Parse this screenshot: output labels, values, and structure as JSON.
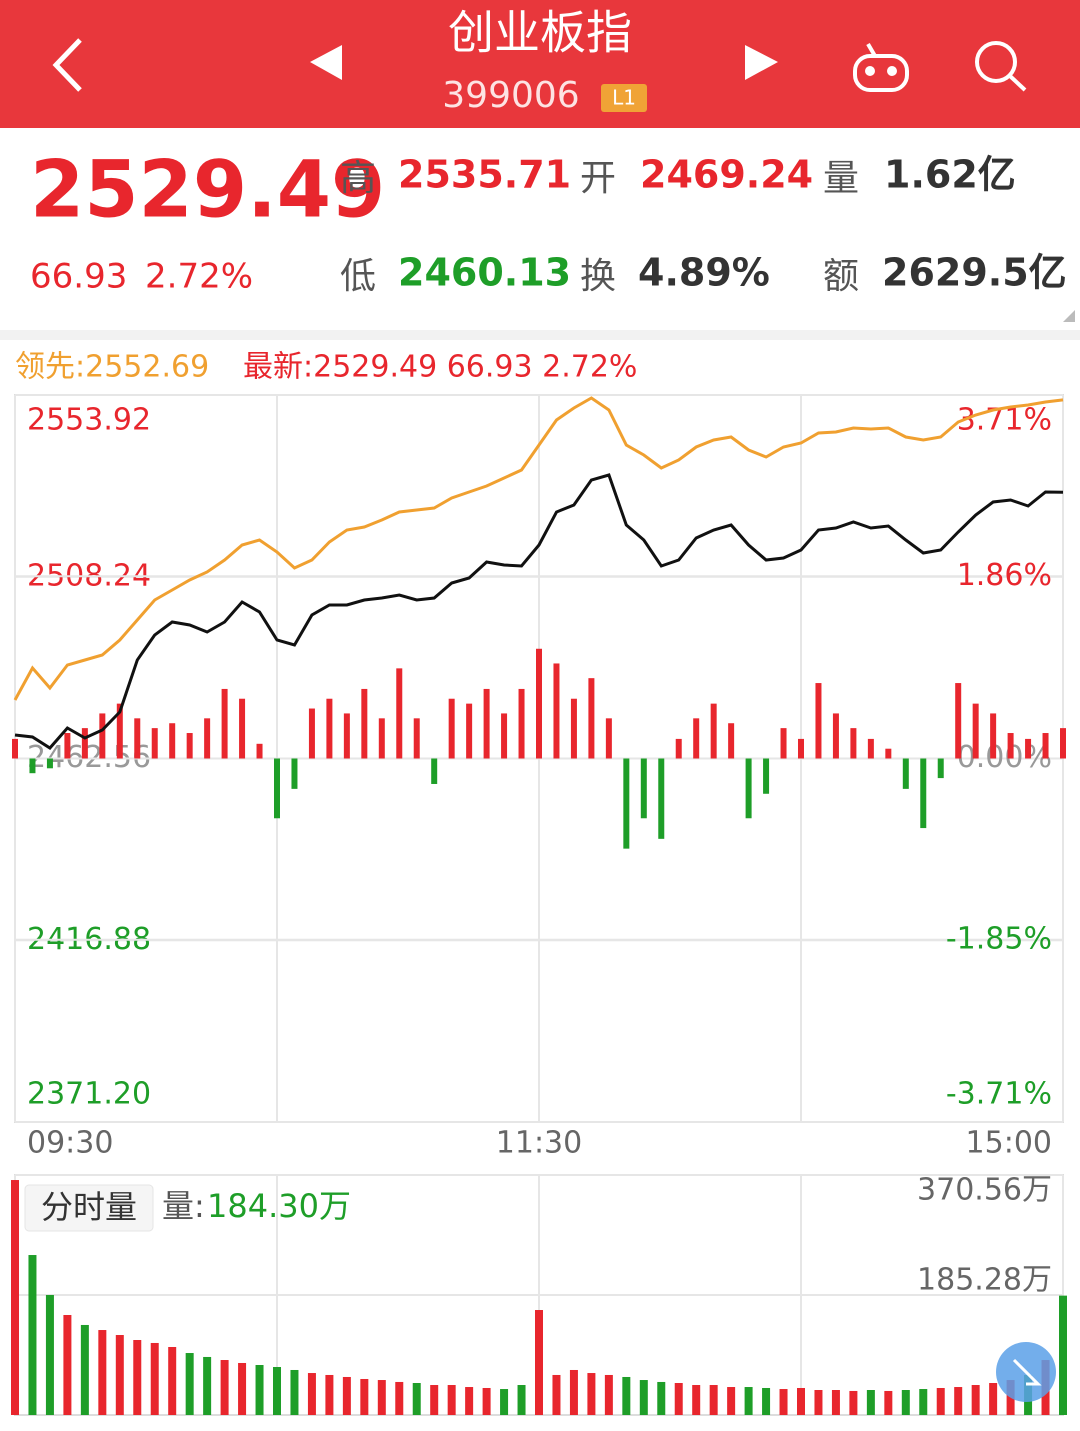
{
  "header": {
    "title": "创业板指",
    "code": "399006",
    "badge": "L1"
  },
  "quote": {
    "price": "2529.49",
    "change": "66.93",
    "change_pct": "2.72%",
    "fields": [
      {
        "label": "高",
        "value": "2535.71"
      },
      {
        "label": "开",
        "value": "2469.24"
      },
      {
        "label": "量",
        "value": "1.62亿"
      },
      {
        "label": "低",
        "value": "2460.13"
      },
      {
        "label": "换",
        "value": "4.89%"
      },
      {
        "label": "额",
        "value": "2629.5亿"
      }
    ]
  },
  "chart_data": [
    {
      "type": "line",
      "legend": [
        "领先:2552.69",
        "最新:2529.49 66.93 2.72%"
      ],
      "x": [
        0,
        4,
        8,
        12,
        16,
        20,
        24,
        28,
        32,
        36,
        40,
        44,
        48,
        52,
        56,
        60,
        64,
        68,
        72,
        76,
        80,
        84,
        88,
        92,
        96,
        100,
        104,
        108,
        112,
        116,
        120,
        124,
        128,
        132,
        136,
        140,
        144,
        148,
        152,
        156,
        160,
        164,
        168,
        172,
        176,
        180,
        184,
        188,
        192,
        196,
        200,
        204,
        208,
        212,
        216,
        220,
        224,
        228,
        232,
        236,
        240
      ],
      "xlim": [
        0,
        240
      ],
      "xticks": [
        {
          "value": 0,
          "label": "09:30"
        },
        {
          "value": 60,
          "label": null
        },
        {
          "value": 120,
          "label": "11:30"
        },
        {
          "value": 180,
          "label": null
        },
        {
          "value": 240,
          "label": "15:00"
        }
      ],
      "ylim": [
        2371.2,
        2553.92
      ],
      "yticks": [
        2553.92,
        2508.24,
        2462.56,
        2416.88,
        {
          "value": 2371.2,
          "label": "2371.20"
        }
      ],
      "y2lim": [
        -3.71,
        3.71
      ],
      "y2ticks": [
        {
          "value": 3.71,
          "label": "3.71%"
        },
        {
          "value": 1.86,
          "label": "1.86%"
        },
        {
          "value": 0,
          "label": "0.00%"
        },
        {
          "value": -1.85,
          "label": "-1.85%"
        },
        {
          "value": -3.71,
          "label": "-3.71%"
        }
      ],
      "up_color": "#e8262d",
      "down_color": "#1e9e28",
      "series": [
        {
          "type": "line",
          "color": "#f0a030",
          "values": [
            2477.26,
            2485.3,
            2480.28,
            2486.06,
            2487.31,
            2488.57,
            2492.34,
            2497.37,
            2502.4,
            2504.91,
            2507.42,
            2509.43,
            2512.45,
            2516.22,
            2517.48,
            2514.46,
            2510.44,
            2512.45,
            2516.97,
            2519.99,
            2520.74,
            2522.5,
            2524.51,
            2525.02,
            2525.52,
            2528.03,
            2529.54,
            2531.05,
            2533.06,
            2535.07,
            2541.35,
            2547.64,
            2550.65,
            2553.17,
            2550.15,
            2541.35,
            2538.84,
            2535.57,
            2537.58,
            2540.85,
            2542.61,
            2543.36,
            2540.1,
            2538.34,
            2540.85,
            2541.86,
            2544.37,
            2544.62,
            2545.63,
            2545.37,
            2545.63,
            2543.36,
            2542.61,
            2543.36,
            2547.13,
            2548.89,
            2550.15,
            2550.9,
            2551.41,
            2552.16,
            2552.69
          ]
        },
        {
          "type": "line",
          "color": "#111111",
          "values": [
            2468.46,
            2467.96,
            2465.2,
            2470.22,
            2467.71,
            2469.72,
            2474.25,
            2487.31,
            2493.6,
            2496.87,
            2496.11,
            2494.35,
            2496.87,
            2501.89,
            2499.38,
            2492.34,
            2491.08,
            2498.63,
            2501.14,
            2501.14,
            2502.4,
            2502.9,
            2503.65,
            2502.4,
            2502.9,
            2506.67,
            2507.92,
            2511.95,
            2511.19,
            2510.94,
            2516.22,
            2524.51,
            2526.27,
            2532.56,
            2533.81,
            2521.25,
            2517.48,
            2510.94,
            2512.45,
            2517.98,
            2519.99,
            2521.25,
            2516.22,
            2512.45,
            2512.95,
            2514.96,
            2519.99,
            2520.49,
            2522.0,
            2520.49,
            2520.99,
            2517.48,
            2514.21,
            2514.96,
            2519.49,
            2523.76,
            2527.03,
            2527.53,
            2526.02,
            2529.54,
            2529.49
          ]
        },
        {
          "type": "bar",
          "axis": "y2",
          "values": [
            0.2,
            -0.15,
            -0.1,
            0.26,
            0.31,
            0.46,
            0.56,
            0.41,
            0.31,
            0.36,
            0.26,
            0.41,
            0.71,
            0.61,
            0.15,
            -0.61,
            -0.31,
            0.51,
            0.61,
            0.46,
            0.71,
            0.41,
            0.92,
            0.41,
            -0.26,
            0.61,
            0.56,
            0.71,
            0.46,
            0.71,
            1.12,
            0.97,
            0.61,
            0.82,
            0.41,
            -0.92,
            -0.61,
            -0.82,
            0.2,
            0.41,
            0.56,
            0.36,
            -0.61,
            -0.36,
            0.31,
            0.2,
            0.77,
            0.46,
            0.31,
            0.2,
            0.1,
            -0.31,
            -0.71,
            -0.2,
            0.77,
            0.56,
            0.46,
            0.26,
            0.2,
            0.26,
            0.31
          ]
        }
      ]
    },
    {
      "type": "bar",
      "button": "分时量",
      "volume_label": "量:",
      "volume_value": "184.30万",
      "ylim": [
        0,
        370.56
      ],
      "yticks": [
        {
          "value": 370.56,
          "label": "370.56万"
        },
        {
          "value": 185.28,
          "label": "185.28万"
        }
      ],
      "up_color": "#e8262d",
      "down_color": "#1e9e28",
      "values": [
        362.8,
        247.0,
        185.3,
        154.4,
        139.0,
        131.2,
        123.5,
        115.8,
        111.2,
        105.0,
        95.7,
        89.6,
        84.9,
        80.3,
        77.2,
        74.1,
        69.5,
        64.8,
        61.8,
        58.7,
        55.6,
        54.0,
        51.0,
        49.4,
        46.3,
        46.3,
        43.2,
        41.7,
        40.1,
        46.3,
        162.1,
        61.8,
        69.5,
        64.8,
        61.8,
        58.7,
        54.0,
        51.0,
        49.4,
        46.3,
        46.3,
        43.2,
        43.2,
        41.7,
        40.1,
        41.7,
        38.6,
        38.6,
        37.1,
        38.6,
        37.1,
        38.6,
        40.1,
        41.7,
        43.2,
        46.3,
        49.4,
        54.0,
        61.8,
        84.9,
        184.3
      ]
    }
  ]
}
